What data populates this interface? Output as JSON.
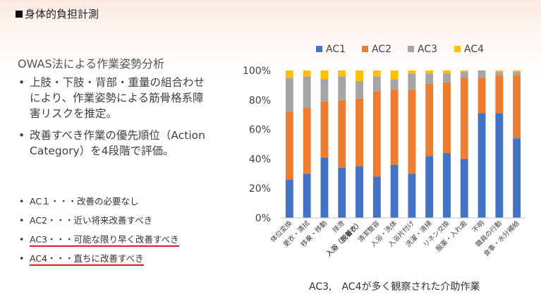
{
  "slide": {
    "title": "身体的負担計測",
    "heading": "OWAS法による作業姿勢分析",
    "bullets": [
      "上肢・下肢・背部・重量の組合わせにより、作業姿勢による筋骨格系障害リスクを推定。",
      "改善すべき作業の優先順位（Action Category）を4段階で評価。"
    ],
    "ac_items": [
      "AC１・・・改善の必要なし",
      "AC2・・・近い将来改善すべき",
      "AC3・・・可能な限り早く改善すべき",
      "AC4・・・直ちに改善すべき"
    ],
    "caption": "AC3,　AC4が多く観察された介助作業"
  },
  "chart_data": {
    "type": "bar",
    "stacked": "percent",
    "categories": [
      "体位変換",
      "更衣・清拭",
      "移乗・移動",
      "排泄",
      "入浴（脱着衣）",
      "清潔整容",
      "入浴・洗体",
      "入浴片付け",
      "洗濯・清掃",
      "リネン交換",
      "服薬・入れ歯",
      "不明",
      "職員の行動",
      "食事・水分補給"
    ],
    "series": [
      {
        "name": "AC1",
        "color": "#4472c4",
        "values": [
          26,
          30,
          41,
          34,
          35,
          28,
          36,
          30,
          42,
          44,
          40,
          71,
          71,
          54
        ]
      },
      {
        "name": "AC2",
        "color": "#ed7d31",
        "values": [
          46,
          45,
          38,
          46,
          46,
          58,
          51,
          57,
          49,
          48,
          55,
          24,
          26,
          43
        ]
      },
      {
        "name": "AC3",
        "color": "#a5a5a5",
        "values": [
          23,
          21,
          15,
          16,
          12,
          10,
          7,
          11,
          7,
          6,
          4,
          5,
          2,
          2
        ]
      },
      {
        "name": "AC4",
        "color": "#ffc000",
        "values": [
          5,
          4,
          6,
          4,
          7,
          4,
          6,
          2,
          2,
          2,
          1,
          0,
          1,
          1
        ]
      }
    ],
    "ylim": [
      0,
      100
    ],
    "yticks": [
      "0%",
      "20%",
      "40%",
      "60%",
      "80%",
      "100%"
    ],
    "legend_position": "top",
    "grid": false
  }
}
